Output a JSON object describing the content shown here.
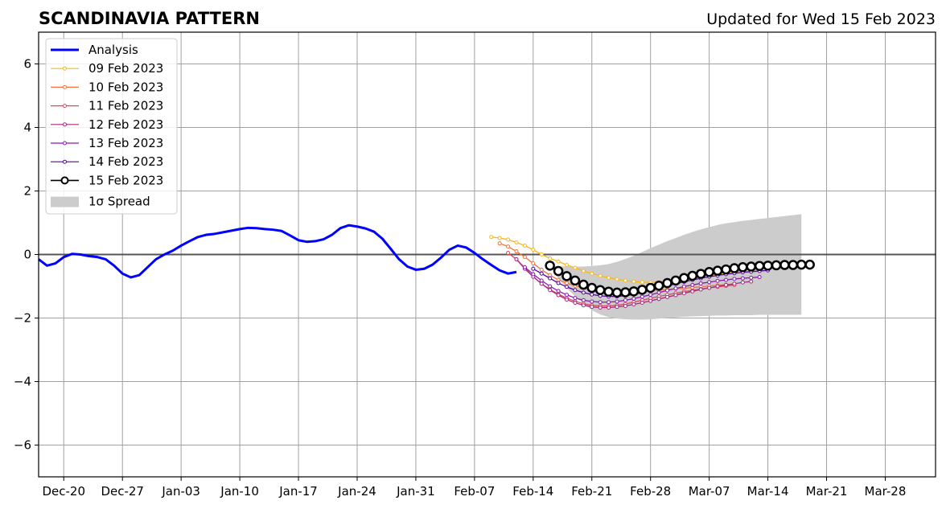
{
  "chart_data": {
    "type": "line",
    "title": "SCANDINAVIA PATTERN",
    "subtitle": "Updated for Wed 15 Feb 2023",
    "xlabel": "",
    "ylabel": "",
    "ylim": [
      -7,
      7
    ],
    "xlim": [
      "2022-12-17",
      "2023-04-03"
    ],
    "yticks": [
      -6,
      -4,
      -2,
      0,
      2,
      4,
      6
    ],
    "ytick_labels": [
      "−6",
      "−4",
      "−2",
      "0",
      "2",
      "4",
      "6"
    ],
    "xticks": [
      "2022-12-20",
      "2022-12-27",
      "2023-01-03",
      "2023-01-10",
      "2023-01-17",
      "2023-01-24",
      "2023-01-31",
      "2023-02-07",
      "2023-02-14",
      "2023-02-21",
      "2023-02-28",
      "2023-03-07",
      "2023-03-14",
      "2023-03-21",
      "2023-03-28"
    ],
    "xtick_labels": [
      "Dec-20",
      "Dec-27",
      "Jan-03",
      "Jan-10",
      "Jan-17",
      "Jan-24",
      "Jan-31",
      "Feb-07",
      "Feb-14",
      "Feb-21",
      "Feb-28",
      "Mar-07",
      "Mar-14",
      "Mar-21",
      "Mar-28"
    ],
    "grid": true,
    "legend_position": "upper-left",
    "analysis": {
      "name": "Analysis",
      "color": "#0000ff",
      "start": "2022-12-17",
      "values": [
        -0.15,
        -0.35,
        -0.28,
        -0.08,
        0.02,
        0.0,
        -0.05,
        -0.08,
        -0.15,
        -0.35,
        -0.6,
        -0.72,
        -0.65,
        -0.4,
        -0.15,
        0.0,
        0.12,
        0.28,
        0.42,
        0.55,
        0.62,
        0.65,
        0.7,
        0.75,
        0.8,
        0.84,
        0.83,
        0.8,
        0.78,
        0.74,
        0.6,
        0.45,
        0.4,
        0.42,
        0.48,
        0.62,
        0.83,
        0.92,
        0.88,
        0.82,
        0.72,
        0.5,
        0.18,
        -0.15,
        -0.38,
        -0.48,
        -0.45,
        -0.32,
        -0.1,
        0.15,
        0.28,
        0.22,
        0.05,
        -0.15,
        -0.33,
        -0.5,
        -0.6,
        -0.55
      ]
    },
    "series": [
      {
        "name": "09 Feb 2023",
        "color": "#fbb61a",
        "start": "2023-02-09",
        "values": [
          0.55,
          0.52,
          0.47,
          0.38,
          0.28,
          0.15,
          0.0,
          -0.12,
          -0.22,
          -0.33,
          -0.42,
          -0.52,
          -0.6,
          -0.67,
          -0.73,
          -0.78,
          -0.82,
          -0.85,
          -0.87,
          -0.88,
          -0.87,
          -0.85,
          -0.82,
          -0.78,
          -0.74,
          -0.7,
          -0.66,
          -0.62,
          -0.58,
          -0.55,
          -0.52
        ]
      },
      {
        "name": "10 Feb 2023",
        "color": "#f1733b",
        "start": "2023-02-10",
        "values": [
          0.35,
          0.25,
          0.1,
          -0.08,
          -0.28,
          -0.48,
          -0.65,
          -0.8,
          -0.9,
          -0.98,
          -1.05,
          -1.1,
          -1.15,
          -1.17,
          -1.18,
          -1.18,
          -1.18,
          -1.16,
          -1.14,
          -1.12,
          -1.1,
          -1.08,
          -1.06,
          -1.04,
          -1.02,
          -0.99,
          -0.97,
          -0.95,
          -0.93
        ]
      },
      {
        "name": "11 Feb 2023",
        "color": "#d9485e",
        "start": "2023-02-11",
        "values": [
          0.05,
          -0.15,
          -0.42,
          -0.7,
          -0.92,
          -1.1,
          -1.25,
          -1.37,
          -1.47,
          -1.55,
          -1.6,
          -1.62,
          -1.62,
          -1.6,
          -1.56,
          -1.5,
          -1.44,
          -1.38,
          -1.32,
          -1.27,
          -1.22,
          -1.17,
          -1.13,
          -1.09,
          -1.05,
          -1.02,
          -0.99,
          -0.96
        ]
      },
      {
        "name": "12 Feb 2023",
        "color": "#a52c81",
        "start": "2023-02-12",
        "values": [
          -0.15,
          -0.45,
          -0.7,
          -0.92,
          -1.12,
          -1.28,
          -1.42,
          -1.52,
          -1.6,
          -1.65,
          -1.67,
          -1.67,
          -1.65,
          -1.62,
          -1.57,
          -1.52,
          -1.46,
          -1.4,
          -1.34,
          -1.28,
          -1.22,
          -1.16,
          -1.1,
          -1.05,
          -1.0,
          -0.96,
          -0.92,
          -0.88,
          -0.85
        ]
      },
      {
        "name": "13 Feb 2023",
        "color": "#8a1aad",
        "start": "2023-02-13",
        "values": [
          -0.4,
          -0.62,
          -0.82,
          -1.0,
          -1.15,
          -1.27,
          -1.37,
          -1.44,
          -1.48,
          -1.5,
          -1.5,
          -1.48,
          -1.44,
          -1.39,
          -1.33,
          -1.27,
          -1.2,
          -1.13,
          -1.07,
          -1.01,
          -0.96,
          -0.91,
          -0.87,
          -0.83,
          -0.8,
          -0.77,
          -0.75,
          -0.73,
          -0.71
        ]
      },
      {
        "name": "14 Feb 2023",
        "color": "#57049e",
        "start": "2023-02-14",
        "values": [
          -0.45,
          -0.6,
          -0.75,
          -0.9,
          -1.02,
          -1.12,
          -1.2,
          -1.26,
          -1.3,
          -1.32,
          -1.32,
          -1.3,
          -1.26,
          -1.2,
          -1.13,
          -1.06,
          -0.99,
          -0.92,
          -0.86,
          -0.8,
          -0.75,
          -0.7,
          -0.66,
          -0.62,
          -0.59,
          -0.56,
          -0.54,
          -0.52,
          -0.5
        ]
      },
      {
        "name": "15 Feb 2023",
        "color": "#000000",
        "start": "2023-02-16",
        "values": [
          -0.35,
          -0.52,
          -0.68,
          -0.82,
          -0.95,
          -1.05,
          -1.12,
          -1.17,
          -1.2,
          -1.19,
          -1.16,
          -1.11,
          -1.05,
          -0.98,
          -0.9,
          -0.82,
          -0.74,
          -0.67,
          -0.61,
          -0.55,
          -0.51,
          -0.47,
          -0.43,
          -0.4,
          -0.38,
          -0.36,
          -0.35,
          -0.34,
          -0.33,
          -0.33,
          -0.32,
          -0.32
        ]
      }
    ],
    "spread": {
      "name": "1σ Spread",
      "color": "#cccccc",
      "start": "2023-02-16",
      "upper": [
        -0.35,
        -0.37,
        -0.38,
        -0.38,
        -0.38,
        -0.36,
        -0.34,
        -0.3,
        -0.23,
        -0.14,
        -0.04,
        0.08,
        0.2,
        0.31,
        0.42,
        0.52,
        0.62,
        0.71,
        0.79,
        0.86,
        0.93,
        0.98,
        1.02,
        1.06,
        1.09,
        1.12,
        1.15,
        1.18,
        1.21,
        1.24,
        1.27
      ],
      "lower": [
        -0.35,
        -0.75,
        -1.05,
        -1.32,
        -1.55,
        -1.75,
        -1.89,
        -1.97,
        -2.02,
        -2.04,
        -2.05,
        -2.05,
        -2.04,
        -2.02,
        -2.0,
        -1.98,
        -1.96,
        -1.95,
        -1.94,
        -1.93,
        -1.92,
        -1.92,
        -1.91,
        -1.91,
        -1.91,
        -1.9,
        -1.9,
        -1.9,
        -1.9,
        -1.9,
        -1.9
      ]
    }
  }
}
